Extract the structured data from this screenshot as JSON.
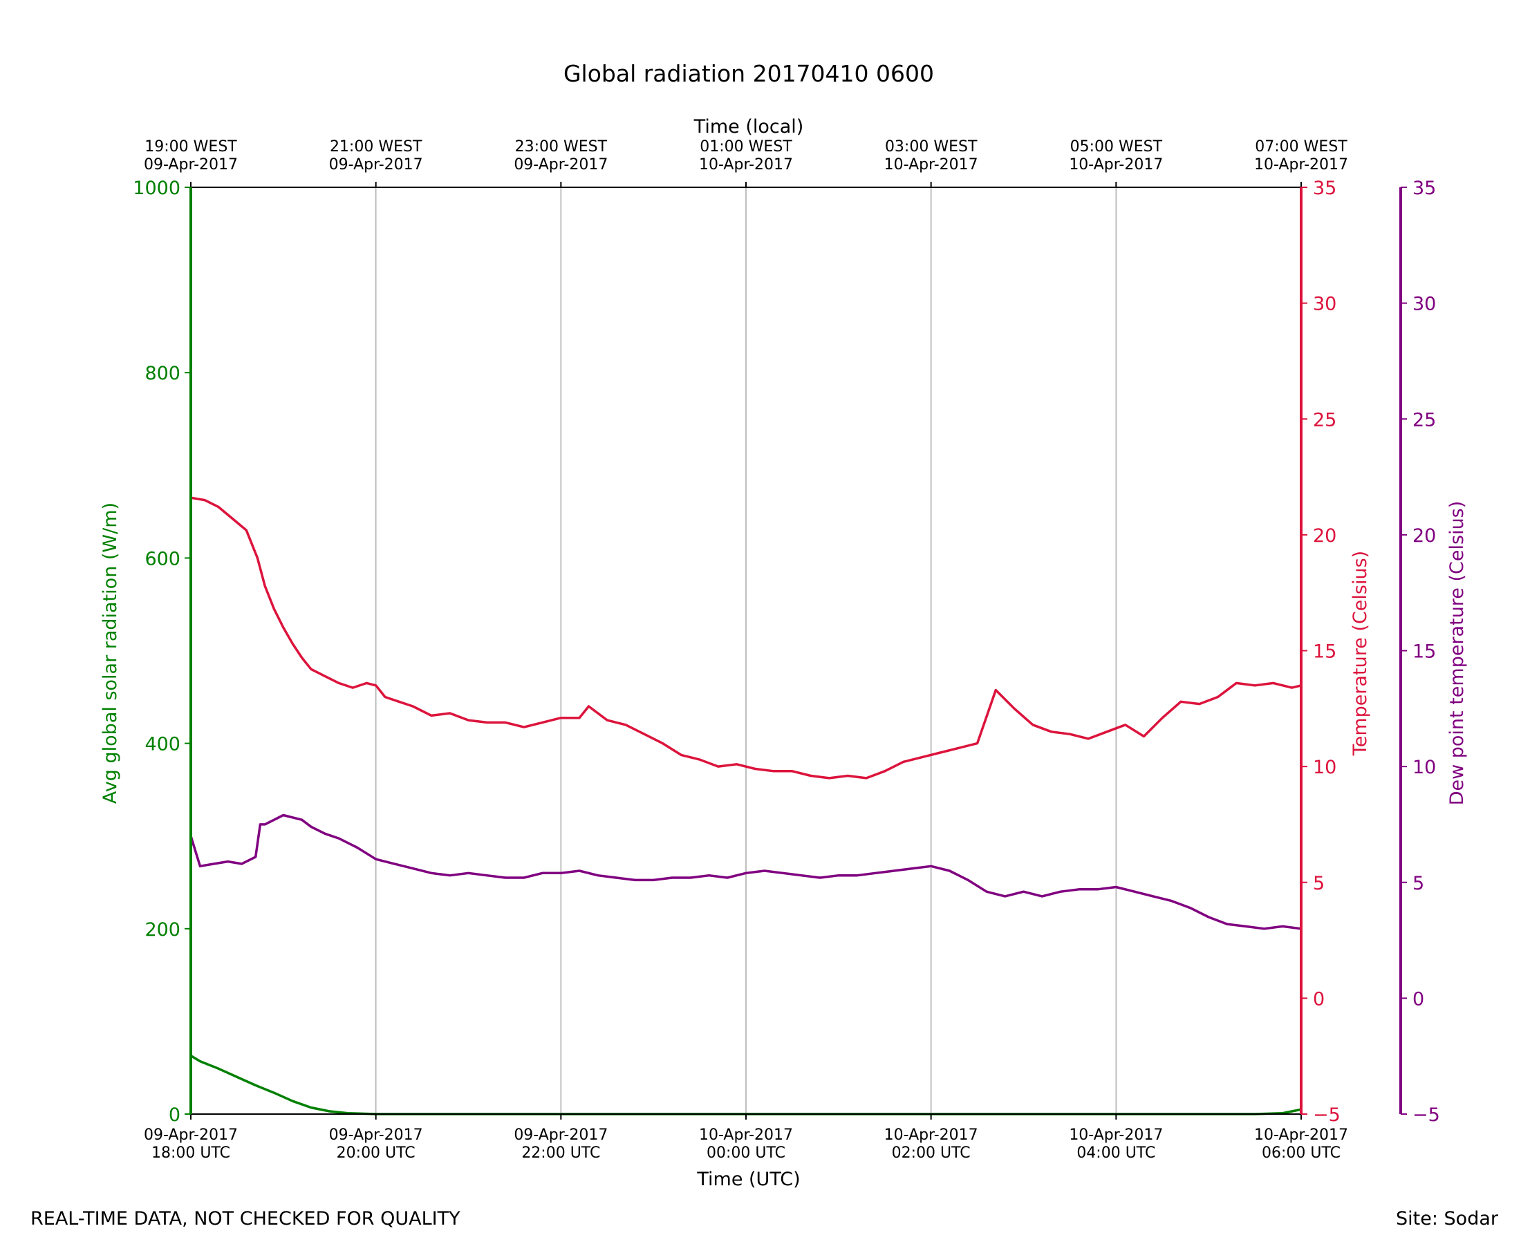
{
  "chart_data": {
    "type": "line",
    "title": "Global radiation 20170410 0600",
    "xlabel_bottom": "Time (UTC)",
    "xlabel_top": "Time (local)",
    "x_unit": "hours since 09-Apr-2017 18:00 UTC",
    "xlim": [
      0,
      12
    ],
    "x_ticks_bottom": [
      {
        "x": 0,
        "l1": "09-Apr-2017",
        "l2": "18:00 UTC"
      },
      {
        "x": 2,
        "l1": "09-Apr-2017",
        "l2": "20:00 UTC"
      },
      {
        "x": 4,
        "l1": "09-Apr-2017",
        "l2": "22:00 UTC"
      },
      {
        "x": 6,
        "l1": "10-Apr-2017",
        "l2": "00:00 UTC"
      },
      {
        "x": 8,
        "l1": "10-Apr-2017",
        "l2": "02:00 UTC"
      },
      {
        "x": 10,
        "l1": "10-Apr-2017",
        "l2": "04:00 UTC"
      },
      {
        "x": 12,
        "l1": "10-Apr-2017",
        "l2": "06:00 UTC"
      }
    ],
    "x_ticks_top": [
      {
        "x": 0,
        "l1": "19:00 WEST",
        "l2": "09-Apr-2017"
      },
      {
        "x": 2,
        "l1": "21:00 WEST",
        "l2": "09-Apr-2017"
      },
      {
        "x": 4,
        "l1": "23:00 WEST",
        "l2": "09-Apr-2017"
      },
      {
        "x": 6,
        "l1": "01:00 WEST",
        "l2": "10-Apr-2017"
      },
      {
        "x": 8,
        "l1": "03:00 WEST",
        "l2": "10-Apr-2017"
      },
      {
        "x": 10,
        "l1": "05:00 WEST",
        "l2": "10-Apr-2017"
      },
      {
        "x": 12,
        "l1": "07:00 WEST",
        "l2": "10-Apr-2017"
      }
    ],
    "axes": {
      "left": {
        "label": "Avg global solar radiation (W/m)",
        "ylim": [
          0,
          1000
        ],
        "ticks": [
          0,
          200,
          400,
          600,
          800,
          1000
        ],
        "color": "#008000"
      },
      "right1": {
        "label": "Temperature (Celsius)",
        "ylim": [
          -5,
          35
        ],
        "ticks": [
          -5,
          0,
          5,
          10,
          15,
          20,
          25,
          30,
          35
        ],
        "color": "#dc143c"
      },
      "right2": {
        "label": "Dew point temperature (Celsius)",
        "ylim": [
          -5,
          35
        ],
        "ticks": [
          -5,
          0,
          5,
          10,
          15,
          20,
          25,
          30,
          35
        ],
        "color": "#800080"
      }
    },
    "grid": "vertical",
    "series": [
      {
        "name": "",
        "axis": "left",
        "color": "#008000",
        "x": [
          0,
          0.1,
          0.3,
          0.5,
          0.7,
          0.9,
          1.1,
          1.3,
          1.5,
          1.7,
          2,
          3,
          4,
          6,
          8,
          10,
          11,
          11.5,
          11.8,
          11.9,
          12
        ],
        "y": [
          63,
          57,
          49,
          40,
          31,
          23,
          14,
          7,
          3,
          1,
          0,
          0,
          0,
          0,
          0,
          0,
          0,
          0,
          1,
          3,
          5
        ]
      },
      {
        "name": "",
        "axis": "right1",
        "color": "#dc143c",
        "x": [
          0,
          0.15,
          0.3,
          0.45,
          0.6,
          0.72,
          0.8,
          0.9,
          1.0,
          1.1,
          1.2,
          1.3,
          1.45,
          1.6,
          1.75,
          1.9,
          2.0,
          2.1,
          2.25,
          2.4,
          2.6,
          2.8,
          3.0,
          3.2,
          3.4,
          3.6,
          3.8,
          4.0,
          4.2,
          4.3,
          4.5,
          4.7,
          4.9,
          5.1,
          5.3,
          5.5,
          5.7,
          5.9,
          6.1,
          6.3,
          6.5,
          6.7,
          6.9,
          7.1,
          7.3,
          7.5,
          7.7,
          7.9,
          8.1,
          8.3,
          8.5,
          8.7,
          8.9,
          9.1,
          9.3,
          9.5,
          9.7,
          9.9,
          10.1,
          10.3,
          10.5,
          10.7,
          10.9,
          11.1,
          11.3,
          11.5,
          11.7,
          11.9,
          12
        ],
        "y": [
          21.6,
          21.5,
          21.2,
          20.7,
          20.2,
          19.0,
          17.8,
          16.8,
          16.0,
          15.3,
          14.7,
          14.2,
          13.9,
          13.6,
          13.4,
          13.6,
          13.5,
          13.0,
          12.8,
          12.6,
          12.2,
          12.3,
          12.0,
          11.9,
          11.9,
          11.7,
          11.9,
          12.1,
          12.1,
          12.6,
          12.0,
          11.8,
          11.4,
          11.0,
          10.5,
          10.3,
          10.0,
          10.1,
          9.9,
          9.8,
          9.8,
          9.6,
          9.5,
          9.6,
          9.5,
          9.8,
          10.2,
          10.4,
          10.6,
          10.8,
          11.0,
          13.3,
          12.5,
          11.8,
          11.5,
          11.4,
          11.2,
          11.5,
          11.8,
          11.3,
          12.1,
          12.8,
          12.7,
          13.0,
          13.6,
          13.5,
          13.6,
          13.4,
          13.5
        ]
      },
      {
        "name": "",
        "axis": "right2",
        "color": "#800080",
        "x": [
          0,
          0.1,
          0.25,
          0.4,
          0.55,
          0.7,
          0.75,
          0.8,
          1.0,
          1.2,
          1.3,
          1.45,
          1.6,
          1.8,
          2.0,
          2.2,
          2.4,
          2.6,
          2.8,
          3.0,
          3.2,
          3.4,
          3.6,
          3.8,
          4.0,
          4.2,
          4.4,
          4.6,
          4.8,
          5.0,
          5.2,
          5.4,
          5.6,
          5.8,
          6.0,
          6.2,
          6.4,
          6.6,
          6.8,
          7.0,
          7.2,
          7.4,
          7.6,
          7.8,
          8.0,
          8.2,
          8.4,
          8.6,
          8.8,
          9.0,
          9.2,
          9.4,
          9.6,
          9.8,
          10.0,
          10.2,
          10.4,
          10.6,
          10.8,
          11.0,
          11.2,
          11.4,
          11.6,
          11.8,
          12
        ],
        "y": [
          7.0,
          5.7,
          5.8,
          5.9,
          5.8,
          6.1,
          7.5,
          7.5,
          7.9,
          7.7,
          7.4,
          7.1,
          6.9,
          6.5,
          6.0,
          5.8,
          5.6,
          5.4,
          5.3,
          5.4,
          5.3,
          5.2,
          5.2,
          5.4,
          5.4,
          5.5,
          5.3,
          5.2,
          5.1,
          5.1,
          5.2,
          5.2,
          5.3,
          5.2,
          5.4,
          5.5,
          5.4,
          5.3,
          5.2,
          5.3,
          5.3,
          5.4,
          5.5,
          5.6,
          5.7,
          5.5,
          5.1,
          4.6,
          4.4,
          4.6,
          4.4,
          4.6,
          4.7,
          4.7,
          4.8,
          4.6,
          4.4,
          4.2,
          3.9,
          3.5,
          3.2,
          3.1,
          3.0,
          3.1,
          3.0
        ]
      }
    ]
  },
  "footer": {
    "note": "REAL-TIME DATA, NOT CHECKED FOR QUALITY",
    "site": "Site: Sodar"
  }
}
